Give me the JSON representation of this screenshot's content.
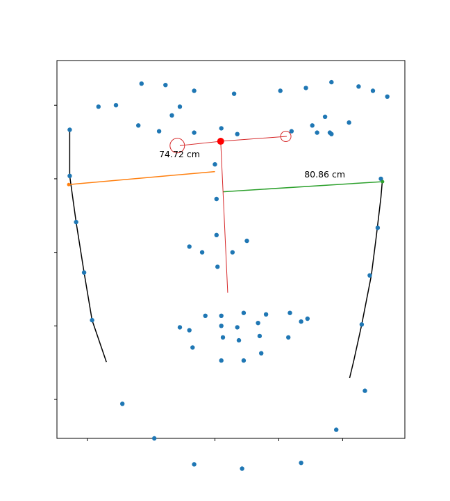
{
  "chart_data": {
    "type": "scatter",
    "title": "",
    "xlabel": "",
    "ylabel": "",
    "xlim": [
      -5.5,
      103.5
    ],
    "ylim": [
      119.5,
      -11.5
    ],
    "xticks": [
      4,
      44,
      64,
      84
    ],
    "yticks": [
      4,
      29.5,
      55,
      80.5,
      106
    ],
    "show_tick_labels": false,
    "grid": false,
    "points": [
      [
        13,
        4
      ],
      [
        21,
        -3.5
      ],
      [
        28.5,
        -3
      ],
      [
        37.5,
        -1
      ],
      [
        50,
        0
      ],
      [
        64.5,
        -1
      ],
      [
        72.5,
        -2
      ],
      [
        80.5,
        -4
      ],
      [
        89,
        -2.5
      ],
      [
        98,
        1
      ],
      [
        7.5,
        4.5
      ],
      [
        26.5,
        13
      ],
      [
        20,
        11
      ],
      [
        30.5,
        7.5
      ],
      [
        33,
        4.5
      ],
      [
        37.5,
        13.5
      ],
      [
        46,
        12
      ],
      [
        51,
        14
      ],
      [
        78.5,
        8
      ],
      [
        86,
        10
      ],
      [
        80,
        13.5
      ],
      [
        74.5,
        11
      ],
      [
        68,
        13
      ],
      [
        76,
        13.5
      ],
      [
        80.5,
        14
      ],
      [
        93.5,
        -1
      ],
      [
        -1.5,
        12.5
      ],
      [
        44,
        24.5
      ],
      [
        -1.5,
        28.5
      ],
      [
        44.5,
        36.5
      ],
      [
        0.5,
        44.5
      ],
      [
        44.5,
        49
      ],
      [
        36,
        53
      ],
      [
        40,
        55
      ],
      [
        49.5,
        55
      ],
      [
        54,
        51
      ],
      [
        44.8,
        60
      ],
      [
        3,
        62
      ],
      [
        5.5,
        78.5
      ],
      [
        33,
        81
      ],
      [
        36,
        82
      ],
      [
        41,
        77
      ],
      [
        46,
        77
      ],
      [
        53,
        76
      ],
      [
        60,
        76.5
      ],
      [
        67.5,
        76
      ],
      [
        71,
        79
      ],
      [
        73,
        78
      ],
      [
        46,
        80.5
      ],
      [
        51,
        81
      ],
      [
        57.5,
        79.5
      ],
      [
        46.5,
        84.5
      ],
      [
        51.5,
        85.5
      ],
      [
        58,
        84
      ],
      [
        67,
        84.5
      ],
      [
        37,
        88
      ],
      [
        58.5,
        90
      ],
      [
        46,
        92.5
      ],
      [
        53,
        92.5
      ],
      [
        15,
        107.5
      ],
      [
        25,
        119.5
      ],
      [
        37.5,
        128.5
      ],
      [
        91,
        103
      ],
      [
        82,
        116.5
      ],
      [
        71,
        128
      ],
      [
        52.5,
        130
      ],
      [
        96,
        29.5
      ],
      [
        95,
        46.5
      ],
      [
        92.5,
        63
      ],
      [
        90,
        80
      ]
    ],
    "point_color": "#1f77b4",
    "left_contour": [
      [
        -1.5,
        12.5
      ],
      [
        -1.5,
        28.5
      ],
      [
        0.5,
        44.5
      ],
      [
        3,
        62
      ],
      [
        5.5,
        78.5
      ],
      [
        10,
        93
      ]
    ],
    "right_contour": [
      [
        96.5,
        29.5
      ],
      [
        96,
        36
      ],
      [
        94.5,
        50
      ],
      [
        93,
        63
      ],
      [
        90,
        80
      ],
      [
        87.5,
        92.5
      ],
      [
        86.2,
        98.5
      ]
    ],
    "red_segments": [
      {
        "from": [
          33,
          18
        ],
        "to": [
          45.8,
          16.5
        ]
      },
      {
        "from": [
          45.8,
          16.5
        ],
        "to": [
          66.5,
          14.8
        ]
      },
      {
        "from": [
          45.8,
          16.5
        ],
        "to": [
          48,
          69
        ]
      }
    ],
    "red_color": "#d62728",
    "red_dot": [
      45.8,
      16.5
    ],
    "red_circles": [
      [
        32.2,
        18
      ],
      [
        66.2,
        14.8
      ]
    ],
    "orange_line": {
      "from": [
        -1.8,
        31.5
      ],
      "to": [
        44,
        27
      ],
      "color": "#ff7f0e"
    },
    "green_line": {
      "from": [
        46.5,
        34
      ],
      "to": [
        96.5,
        30.5
      ],
      "color": "#2ca02c"
    },
    "annotations": [
      {
        "text": "74.72 cm",
        "at": [
          26.5,
          22
        ]
      },
      {
        "text": "80.86 cm",
        "at": [
          72,
          29
        ]
      }
    ]
  }
}
